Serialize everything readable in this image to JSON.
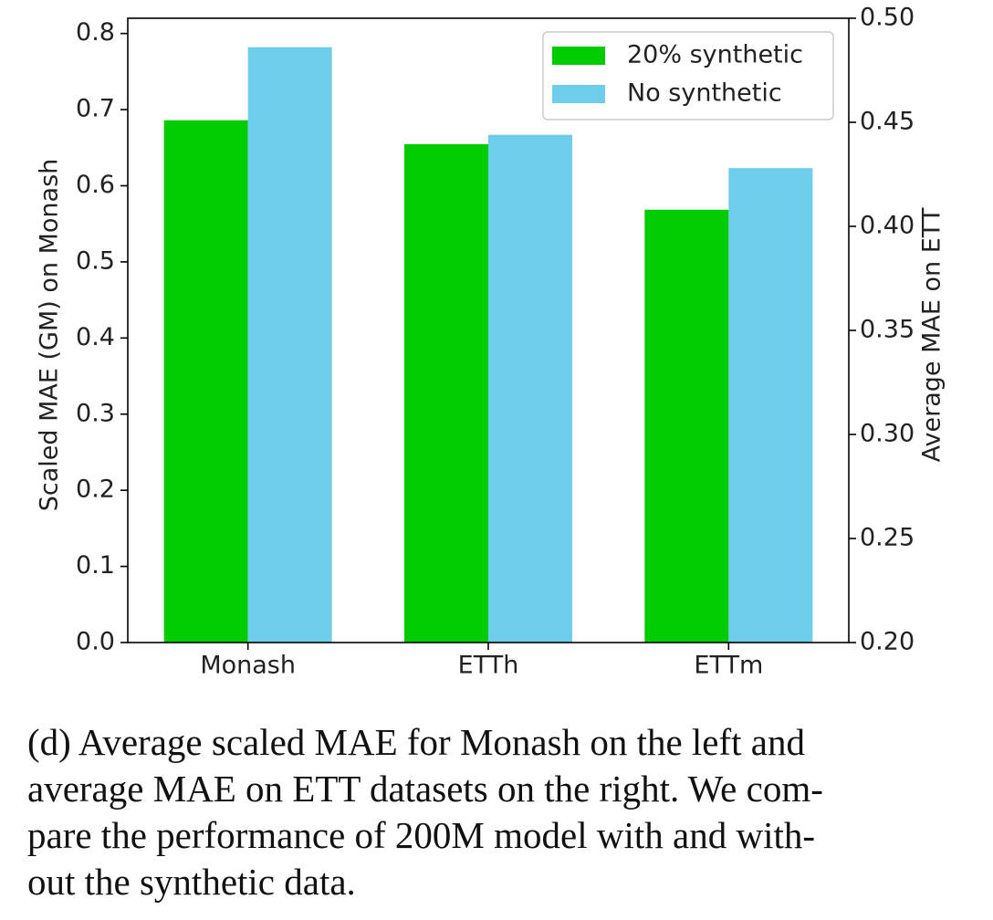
{
  "chart_data": {
    "type": "bar",
    "categories": [
      "Monash",
      "ETTh",
      "ETTm"
    ],
    "series": [
      {
        "name": "20% synthetic",
        "color": "#00cc00",
        "values": [
          0.686,
          0.4395,
          0.408
        ],
        "axes": [
          "y",
          "y2",
          "y2"
        ]
      },
      {
        "name": "No synthetic",
        "color": "#6dcdeb",
        "values": [
          0.782,
          0.444,
          0.428
        ],
        "axes": [
          "y",
          "y2",
          "y2"
        ]
      }
    ],
    "y_label": "Scaled MAE (GM) on Monash",
    "y2_label": "Average MAE on ETT",
    "ylim": [
      0,
      0.82
    ],
    "yticks": [
      {
        "value": 0,
        "label": "0.0"
      },
      0.1,
      0.2,
      0.3,
      0.4,
      0.5,
      0.6,
      0.7,
      0.8
    ],
    "y2lim": [
      0.2,
      0.5
    ],
    "y2ticks": [
      {
        "value": 0.2,
        "label": "0.20"
      },
      0.25,
      {
        "value": 0.3,
        "label": "0.30"
      },
      0.35,
      {
        "value": 0.4,
        "label": "0.40"
      },
      0.45,
      {
        "value": 0.5,
        "label": "0.50"
      }
    ],
    "legend": "upper right"
  },
  "caption": {
    "lines": [
      "(d) Average scaled MAE for Monash on the left and",
      "average MAE on ETT datasets on the right. We com-",
      "pare the performance of 200M model with and with-",
      "out the synthetic data."
    ]
  }
}
